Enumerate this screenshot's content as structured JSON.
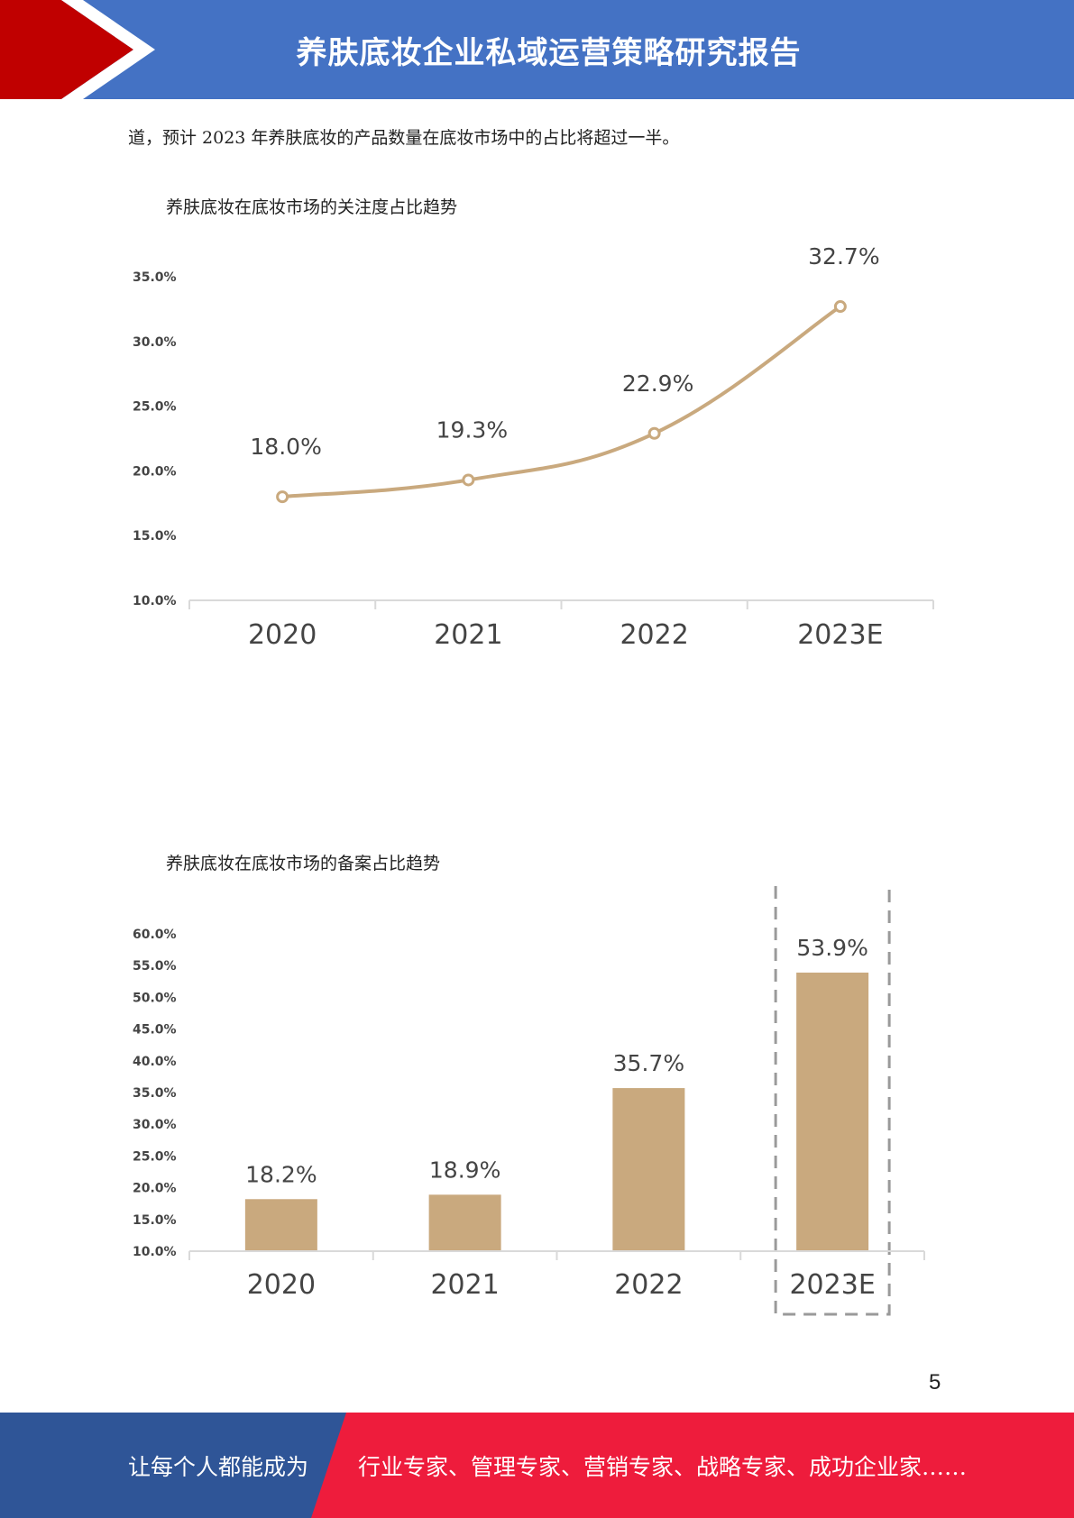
{
  "header": {
    "title": "养肤底妆企业私域运营策略研究报告"
  },
  "intro_text": "道，预计 2023 年养肤底妆的产品数量在底妆市场中的占比将超过一半。",
  "chart_data": [
    {
      "type": "line",
      "title": "养肤底妆在底妆市场的关注度占比趋势",
      "categories": [
        "2020",
        "2021",
        "2022",
        "2023E"
      ],
      "values": [
        18.0,
        19.3,
        22.9,
        32.7
      ],
      "data_labels": [
        "18.0%",
        "19.3%",
        "22.9%",
        "32.7%"
      ],
      "yticks": [
        "10.0%",
        "15.0%",
        "20.0%",
        "25.0%",
        "30.0%",
        "35.0%"
      ],
      "ylim": [
        10,
        35
      ],
      "xlabel": "",
      "ylabel": "",
      "grid": false,
      "color": "#c9a97e"
    },
    {
      "type": "bar",
      "title": "养肤底妆在底妆市场的备案占比趋势",
      "categories": [
        "2020",
        "2021",
        "2022",
        "2023E"
      ],
      "values": [
        18.2,
        18.9,
        35.7,
        53.9
      ],
      "data_labels": [
        "18.2%",
        "18.9%",
        "35.7%",
        "53.9%"
      ],
      "yticks": [
        "10.0%",
        "15.0%",
        "20.0%",
        "25.0%",
        "30.0%",
        "35.0%",
        "40.0%",
        "45.0%",
        "50.0%",
        "55.0%",
        "60.0%"
      ],
      "ylim": [
        10,
        60
      ],
      "xlabel": "",
      "ylabel": "",
      "grid": false,
      "color": "#c9a97e",
      "highlight_category": "2023E"
    }
  ],
  "page_number": "5",
  "footer": {
    "left_text": "让每个人都能成为",
    "right_text": "行业专家、管理专家、营销专家、战略专家、成功企业家……"
  },
  "colors": {
    "header_blue": "#4472c4",
    "header_red": "#c00000",
    "footer_blue": "#2f5597",
    "footer_red": "#ee1c3c",
    "series": "#c9a97e"
  }
}
